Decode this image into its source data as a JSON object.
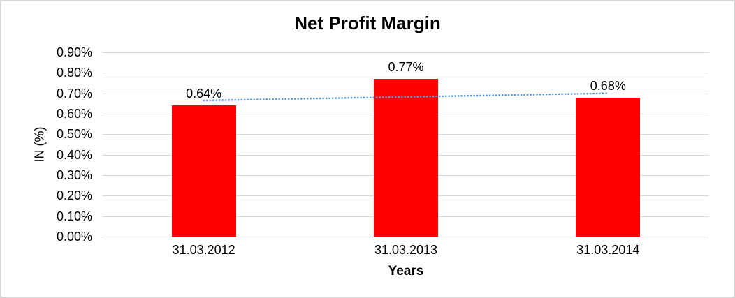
{
  "chart_data": {
    "type": "bar",
    "title": "Net Profit Margin",
    "categories": [
      "31.03.2012",
      "31.03.2013",
      "31.03.2014"
    ],
    "values": [
      0.64,
      0.77,
      0.68
    ],
    "data_labels": [
      "0.64%",
      "0.77%",
      "0.68%"
    ],
    "xlabel": "Years",
    "ylabel": "IN (%)",
    "ylim": [
      0,
      0.9
    ],
    "ytick_interval": 0.1,
    "ytick_labels": [
      "0.00%",
      "0.10%",
      "0.20%",
      "0.30%",
      "0.40%",
      "0.50%",
      "0.60%",
      "0.70%",
      "0.80%",
      "0.90%"
    ],
    "grid": true,
    "legend": "none",
    "bar_color": "#ff0000",
    "gridline_color": "#d9d9d9",
    "trendline": {
      "type": "linear",
      "style": "dotted",
      "color": "#5b9bd5",
      "endpoints": [
        0.665,
        0.7
      ]
    }
  }
}
